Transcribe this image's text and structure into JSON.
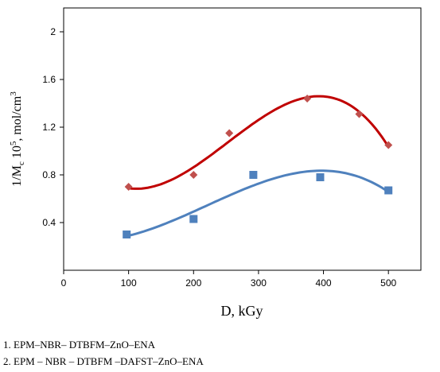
{
  "chart_data": {
    "type": "scatter",
    "xlabel": "D, kGy",
    "ylabel": {
      "prefix": "1/M",
      "sub": "c",
      "mid": " 10",
      "sup": "5",
      "unit": ", mol/cm",
      "unit_sup": "3"
    },
    "xlim": [
      0,
      550
    ],
    "ylim": [
      0,
      2.2
    ],
    "x_ticks": [
      0,
      100,
      200,
      300,
      400,
      500
    ],
    "y_ticks": [
      0.4,
      0.8,
      1.2,
      1.6,
      2
    ],
    "x_tick_labels": [
      "0",
      "100",
      "200",
      "300",
      "400",
      "500"
    ],
    "y_tick_labels": [
      "0.4",
      "0.8",
      "1.2",
      "1.6",
      "2"
    ],
    "grid": false,
    "series": [
      {
        "marker": "diamond",
        "color": "#c0504d",
        "line_color": "#c00000",
        "points": [
          [
            100,
            0.7
          ],
          [
            200,
            0.8
          ],
          [
            255,
            1.15
          ],
          [
            375,
            1.44
          ],
          [
            455,
            1.31
          ],
          [
            500,
            1.05
          ]
        ]
      },
      {
        "marker": "square",
        "color": "#4f81bd",
        "line_color": "#4f81bd",
        "points": [
          [
            97,
            0.3
          ],
          [
            200,
            0.43
          ],
          [
            292,
            0.8
          ],
          [
            395,
            0.78
          ],
          [
            500,
            0.67
          ]
        ]
      }
    ]
  },
  "legend": [
    "1. EPM–NBR– DTBFM–ZnO–ENA",
    "2. EPM – NBR – DTBFM –DAFST–ZnO–ENA"
  ]
}
